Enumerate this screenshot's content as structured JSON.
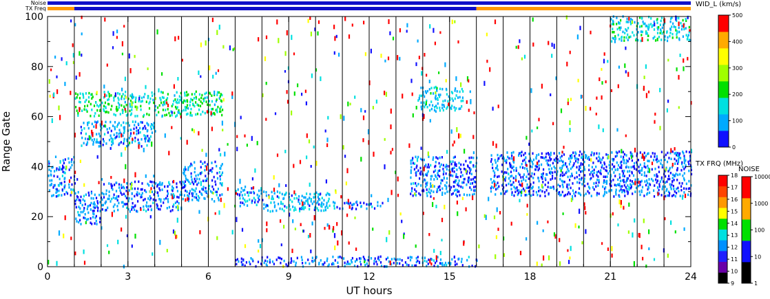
{
  "chart_data": {
    "type": "heatmap",
    "title": "",
    "xlabel": "UT hours",
    "ylabel": "Range Gate",
    "xlim": [
      0,
      24
    ],
    "ylim": [
      0,
      100
    ],
    "x_ticks": [
      "0",
      "3",
      "6",
      "9",
      "12",
      "15",
      "18",
      "21",
      "24"
    ],
    "y_ticks": [
      "0",
      "20",
      "40",
      "60",
      "80",
      "100"
    ],
    "x_tick_values": [
      0,
      3,
      6,
      9,
      12,
      15,
      18,
      21,
      24
    ],
    "y_tick_values": [
      0,
      20,
      40,
      60,
      80,
      100
    ],
    "vertical_separators_hours": [
      1,
      2,
      3,
      4,
      5,
      6,
      7,
      8,
      9,
      10,
      11,
      12,
      13,
      14,
      15,
      16,
      17,
      18,
      19,
      20,
      21,
      22,
      23
    ],
    "top_bars": [
      {
        "label": "Noise",
        "segments": [
          {
            "start": 0,
            "end": 24,
            "color": "#1010c8"
          }
        ]
      },
      {
        "label": "TX Freq",
        "segments": [
          {
            "start": 0,
            "end": 1,
            "color": "#ff9900"
          },
          {
            "start": 1,
            "end": 16,
            "color": "#1010c8"
          },
          {
            "start": 16,
            "end": 24,
            "color": "#ff9900"
          }
        ]
      }
    ],
    "series": [
      {
        "start": 0,
        "end": 1,
        "gate_low": 28,
        "gate_high": 44,
        "level": 80
      },
      {
        "start": 1,
        "end": 2,
        "gate_low": 17,
        "gate_high": 30,
        "level": 70
      },
      {
        "start": 2,
        "end": 5,
        "gate_low": 22,
        "gate_high": 34,
        "level": 70
      },
      {
        "start": 5,
        "end": 6.5,
        "gate_low": 26,
        "gate_high": 42,
        "level": 75
      },
      {
        "start": 1.2,
        "end": 4,
        "gate_low": 48,
        "gate_high": 58,
        "level": 90
      },
      {
        "start": 1,
        "end": 6.5,
        "gate_low": 60,
        "gate_high": 70,
        "level": 180
      },
      {
        "start": 7,
        "end": 8,
        "gate_low": 24,
        "gate_high": 32,
        "level": 90
      },
      {
        "start": 8,
        "end": 10.5,
        "gate_low": 22,
        "gate_high": 30,
        "level": 110
      },
      {
        "start": 10.5,
        "end": 12.5,
        "gate_low": 23,
        "gate_high": 26,
        "level": 80
      },
      {
        "start": 13.5,
        "end": 16,
        "gate_low": 28,
        "gate_high": 44,
        "level": 70
      },
      {
        "start": 13.8,
        "end": 15.5,
        "gate_low": 62,
        "gate_high": 72,
        "level": 130
      },
      {
        "start": 16.5,
        "end": 24,
        "gate_low": 28,
        "gate_high": 46,
        "level": 65
      },
      {
        "start": 7,
        "end": 16,
        "gate_low": 0,
        "gate_high": 4,
        "level": 70
      },
      {
        "start": 21,
        "end": 24,
        "gate_low": 90,
        "gate_high": 100,
        "level": 150
      }
    ],
    "colorbars": [
      {
        "title": "WID_L (km/s)",
        "ticks": [
          "0",
          "100",
          "200",
          "300",
          "400",
          "500"
        ],
        "range": [
          0,
          500
        ],
        "colors": [
          "#1010ff",
          "#00aaff",
          "#00e0e0",
          "#00e000",
          "#a0ff00",
          "#ffff00",
          "#ffaa00",
          "#ff0000"
        ]
      },
      {
        "title": "TX FRQ (MHz)",
        "ticks": [
          "9",
          "10",
          "11",
          "12",
          "13",
          "14",
          "15",
          "16",
          "17",
          "18"
        ],
        "range": [
          9,
          18
        ],
        "colors": [
          "#000000",
          "#6a00a8",
          "#2020ff",
          "#0090ff",
          "#00e0e0",
          "#00e000",
          "#ffff00",
          "#ff9900",
          "#ff4400",
          "#ff0000"
        ]
      },
      {
        "title": "NOISE",
        "ticks": [
          "1",
          "10",
          "100",
          "1000",
          "10000"
        ],
        "range": [
          1,
          100000
        ],
        "colors": [
          "#000000",
          "#1010ff",
          "#00e000",
          "#ffaa00",
          "#ff0000"
        ]
      }
    ]
  }
}
